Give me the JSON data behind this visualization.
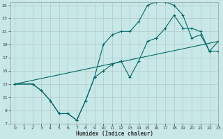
{
  "bg_color": "#c8e8e8",
  "grid_color": "#b0c8c8",
  "line_color": "#006868",
  "line1_x": [
    0,
    2,
    3,
    4,
    5,
    6,
    7,
    8,
    9,
    10,
    11,
    12,
    13,
    14,
    15,
    16,
    17,
    18,
    19,
    20,
    21,
    22,
    23
  ],
  "line1_y": [
    13,
    13,
    12,
    10.5,
    8.5,
    8.5,
    7.5,
    10.5,
    14,
    19,
    20.5,
    21,
    21,
    22.5,
    25,
    25.5,
    25.5,
    25,
    23.5,
    20,
    20.5,
    18,
    19.5
  ],
  "line2_x": [
    0,
    2,
    3,
    4,
    5,
    6,
    7,
    8,
    9,
    10,
    11,
    12,
    13,
    14,
    15,
    16,
    17,
    18,
    19,
    20,
    21,
    22,
    23
  ],
  "line2_y": [
    13,
    13,
    12,
    10.5,
    8.5,
    8.5,
    7.5,
    10.5,
    14,
    15,
    16,
    16.5,
    14,
    16.5,
    19.5,
    20,
    21.5,
    23.5,
    21.5,
    21.5,
    21,
    18,
    18
  ],
  "line3_x": [
    0,
    23
  ],
  "line3_y": [
    13,
    19.5
  ],
  "xlabel": "Humidex (Indice chaleur)",
  "xlim": [
    -0.5,
    23
  ],
  "ylim": [
    7,
    25.5
  ],
  "xticks": [
    0,
    1,
    2,
    3,
    4,
    5,
    6,
    7,
    8,
    9,
    10,
    11,
    12,
    13,
    14,
    15,
    16,
    17,
    18,
    19,
    20,
    21,
    22,
    23
  ],
  "yticks": [
    7,
    9,
    11,
    13,
    15,
    17,
    19,
    21,
    23,
    25
  ]
}
